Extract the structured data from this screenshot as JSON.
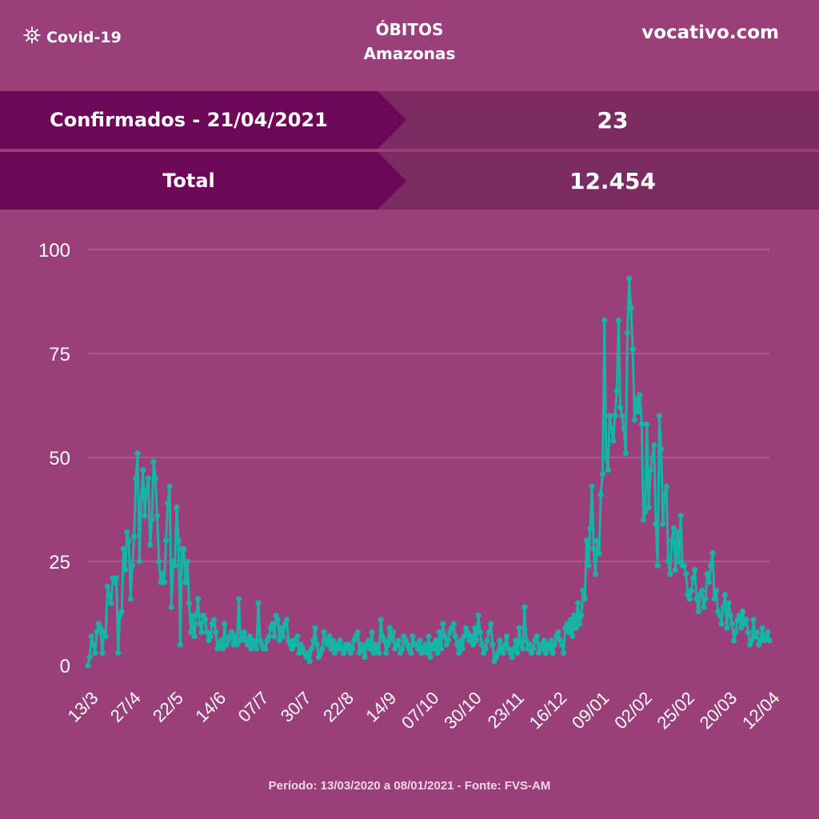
{
  "header": {
    "brand": "Covid-19",
    "brand_icon": "virus-icon",
    "title_line1": "ÓBITOS",
    "title_line2": "Amazonas",
    "site": "vocativo.com"
  },
  "stats": [
    {
      "label": "Confirmados - 21/04/2021",
      "value": "23"
    },
    {
      "label": "Total",
      "value": "12.454"
    }
  ],
  "colors": {
    "background": "#9b3f7a",
    "label_band": "#6d0757",
    "value_band": "#7b2b62",
    "line": "#17b3a6"
  },
  "chart_data": {
    "type": "line",
    "title": "",
    "xlabel": "",
    "ylabel": "",
    "ylim": [
      0,
      100
    ],
    "yticks": [
      0,
      25,
      50,
      75,
      100
    ],
    "grid": true,
    "x_tick_labels": [
      "13/3",
      "27/4",
      "22/5",
      "14/6",
      "07/7",
      "30/7",
      "22/8",
      "14/9",
      "07/10",
      "30/10",
      "23/11",
      "16/12",
      "09/01",
      "02/02",
      "25/02",
      "20/03",
      "12/04"
    ],
    "series": [
      {
        "values": [
          0,
          2,
          7,
          5,
          3,
          8,
          10,
          9,
          3,
          8,
          7,
          19,
          17,
          15,
          21,
          20,
          21,
          3,
          12,
          13,
          28,
          23,
          32,
          30,
          16,
          24,
          31,
          45,
          51,
          25,
          40,
          47,
          36,
          42,
          45,
          29,
          35,
          49,
          45,
          36,
          25,
          20,
          22,
          20,
          30,
          39,
          43,
          14,
          25,
          24,
          38,
          30,
          5,
          28,
          28,
          20,
          25,
          15,
          8,
          12,
          7,
          12,
          16,
          10,
          8,
          12,
          11,
          8,
          6,
          7,
          10,
          11,
          8,
          4,
          5,
          6,
          4,
          10,
          5,
          6,
          7,
          8,
          5,
          7,
          5,
          16,
          6,
          7,
          8,
          6,
          5,
          7,
          4,
          6,
          5,
          4,
          15,
          6,
          5,
          4,
          4,
          6,
          7,
          9,
          10,
          7,
          12,
          11,
          6,
          9,
          7,
          10,
          11,
          6,
          5,
          4,
          6,
          5,
          7,
          3,
          5,
          4,
          3,
          2,
          3,
          1,
          4,
          6,
          9,
          5,
          2,
          3,
          4,
          8,
          6,
          5,
          7,
          4,
          6,
          3,
          5,
          4,
          6,
          4,
          3,
          5,
          4,
          5,
          3,
          4,
          6,
          7,
          8,
          3,
          5,
          4,
          2,
          5,
          6,
          4,
          8,
          3,
          5,
          4,
          3,
          11,
          7,
          6,
          3,
          5,
          9,
          6,
          8,
          4,
          5,
          6,
          3,
          4,
          7,
          6,
          5,
          4,
          3,
          7,
          5,
          5,
          4,
          6,
          3,
          4,
          5,
          3,
          7,
          2,
          5,
          4,
          6,
          3,
          8,
          4,
          10,
          7,
          5,
          6,
          8,
          9,
          10,
          7,
          5,
          3,
          6,
          4,
          7,
          9,
          8,
          6,
          7,
          5,
          9,
          6,
          12,
          8,
          5,
          3,
          4,
          6,
          8,
          10,
          5,
          1,
          2,
          3,
          6,
          4,
          3,
          5,
          7,
          4,
          3,
          2,
          4,
          6,
          3,
          9,
          5,
          4,
          14,
          6,
          4,
          5,
          3,
          4,
          6,
          7,
          3,
          5,
          4,
          6,
          3,
          5,
          4,
          6,
          3,
          5,
          7,
          8,
          6,
          5,
          3,
          9,
          10,
          8,
          11,
          7,
          12,
          9,
          15,
          10,
          12,
          18,
          16,
          30,
          24,
          33,
          43,
          28,
          22,
          30,
          27,
          41,
          46,
          83,
          50,
          47,
          60,
          57,
          54,
          60,
          66,
          83,
          62,
          60,
          57,
          51,
          80,
          93,
          86,
          76,
          59,
          64,
          61,
          65,
          58,
          35,
          37,
          58,
          38,
          47,
          50,
          53,
          34,
          24,
          60,
          52,
          34,
          41,
          43,
          25,
          22,
          30,
          33,
          23,
          32,
          25,
          36,
          24,
          24,
          22,
          17,
          16,
          18,
          21,
          23,
          16,
          13,
          17,
          18,
          14,
          16,
          22,
          20,
          24,
          27,
          16,
          18,
          13,
          12,
          10,
          14,
          17,
          9,
          15,
          12,
          10,
          6,
          8,
          11,
          12,
          9,
          13,
          10,
          11,
          8,
          5,
          6,
          11,
          7,
          8,
          5,
          6,
          9,
          6,
          7,
          8,
          6
        ]
      }
    ]
  },
  "footer": "Período: 13/03/2020 a 08/01/2021 - Fonte: FVS-AM"
}
